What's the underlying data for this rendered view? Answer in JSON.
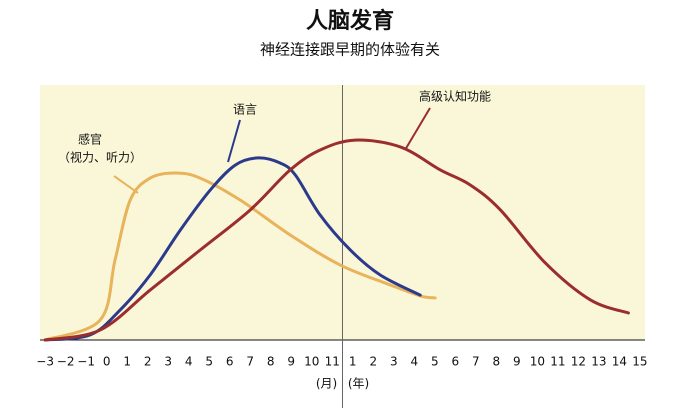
{
  "chart_data": {
    "type": "line",
    "title": "人脑发育",
    "subtitle": "神经连接跟早期的体验有关",
    "unit_labels": [
      "(月)",
      "(年)"
    ],
    "xlim": [
      -0.25,
      29.25
    ],
    "ylim": [
      0,
      100
    ],
    "xticks": [
      {
        "value": 0,
        "label": "−3"
      },
      {
        "value": 1,
        "label": "−2"
      },
      {
        "value": 2,
        "label": "−1"
      },
      {
        "value": 3,
        "label": "0"
      },
      {
        "value": 4,
        "label": "1"
      },
      {
        "value": 5,
        "label": "2"
      },
      {
        "value": 6,
        "label": "3"
      },
      {
        "value": 7,
        "label": "4"
      },
      {
        "value": 8,
        "label": "5"
      },
      {
        "value": 9,
        "label": "6"
      },
      {
        "value": 10,
        "label": "7"
      },
      {
        "value": 11,
        "label": "8"
      },
      {
        "value": 12,
        "label": "9"
      },
      {
        "value": 13,
        "label": "10"
      },
      {
        "value": 14,
        "label": "11"
      },
      {
        "value": 15,
        "label": "1"
      },
      {
        "value": 16,
        "label": "2"
      },
      {
        "value": 17,
        "label": "3"
      },
      {
        "value": 18,
        "label": "4"
      },
      {
        "value": 19,
        "label": "5"
      },
      {
        "value": 20,
        "label": "6"
      },
      {
        "value": 21,
        "label": "7"
      },
      {
        "value": 22,
        "label": "8"
      },
      {
        "value": 23,
        "label": "9"
      },
      {
        "value": 24,
        "label": "10"
      },
      {
        "value": 25,
        "label": "11"
      },
      {
        "value": 26,
        "label": "12"
      },
      {
        "value": 27,
        "label": "13"
      },
      {
        "value": 28,
        "label": "14"
      },
      {
        "value": 29,
        "label": "15"
      }
    ],
    "divider_x": 14.5,
    "background": "#faf7d9",
    "series": [
      {
        "name": "感官",
        "note": "（视力、听力）",
        "color": "#e8b35a",
        "x": [
          0,
          2.68,
          3.41,
          4.15,
          5.12,
          6.34,
          7.56,
          9.51,
          11.95,
          14.39,
          16.83,
          18.29,
          19.02
        ],
        "values": [
          0,
          7.8,
          31.4,
          54.9,
          63.5,
          65.5,
          63.5,
          54.9,
          41.2,
          29.4,
          21.6,
          17.3,
          16.5
        ]
      },
      {
        "name": "语言",
        "color": "#2c3a8c",
        "x": [
          0,
          2.2,
          3.66,
          5.12,
          6.59,
          8.05,
          9.27,
          10.39,
          11.46,
          12.2,
          13.41,
          14.88,
          16.34,
          18.29
        ],
        "values": [
          0,
          2.0,
          11.8,
          25.5,
          43.1,
          58.8,
          68.6,
          71.4,
          69.4,
          64.7,
          49.0,
          35.3,
          25.5,
          17.6
        ]
      },
      {
        "name": "高级认知功能",
        "color": "#9b2d2d",
        "x": [
          0,
          2.68,
          5.12,
          7.56,
          10.0,
          11.95,
          13.41,
          15.12,
          17.32,
          19.27,
          20.73,
          22.2,
          24.39,
          26.59,
          28.44
        ],
        "values": [
          0,
          3.9,
          19.6,
          35.3,
          51.0,
          66.7,
          74.5,
          78.4,
          75.7,
          66.7,
          60.8,
          51.0,
          30.2,
          15.7,
          10.6
        ]
      }
    ]
  }
}
